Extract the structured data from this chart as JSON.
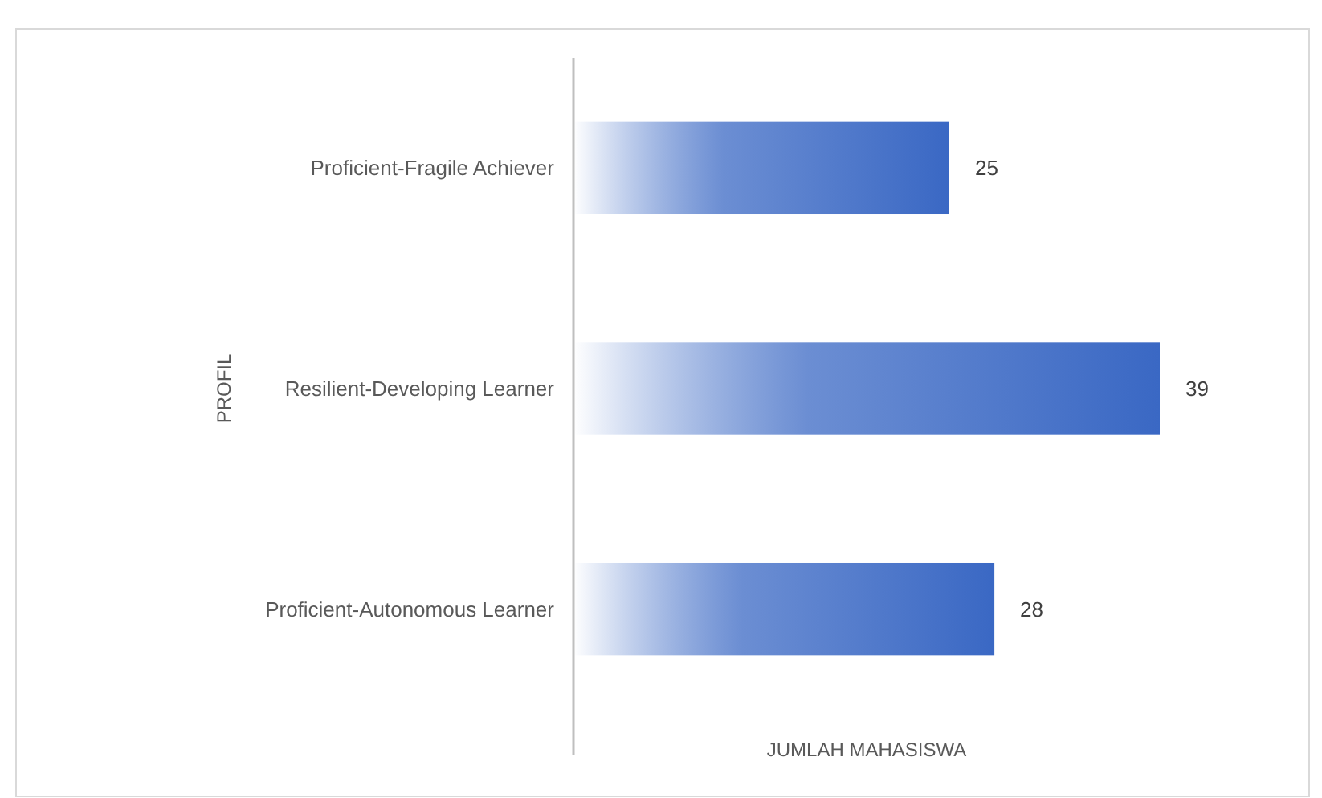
{
  "chart_data": {
    "type": "bar",
    "orientation": "horizontal",
    "xlabel": "JUMLAH MAHASISWA",
    "ylabel": "PROFIL",
    "categories": [
      "Proficient-Fragile Achiever",
      "Resilient-Developing Learner",
      "Proficient-Autonomous Learner"
    ],
    "values": [
      25,
      39,
      28
    ],
    "color": "#3a68c4",
    "data_labels": true
  }
}
